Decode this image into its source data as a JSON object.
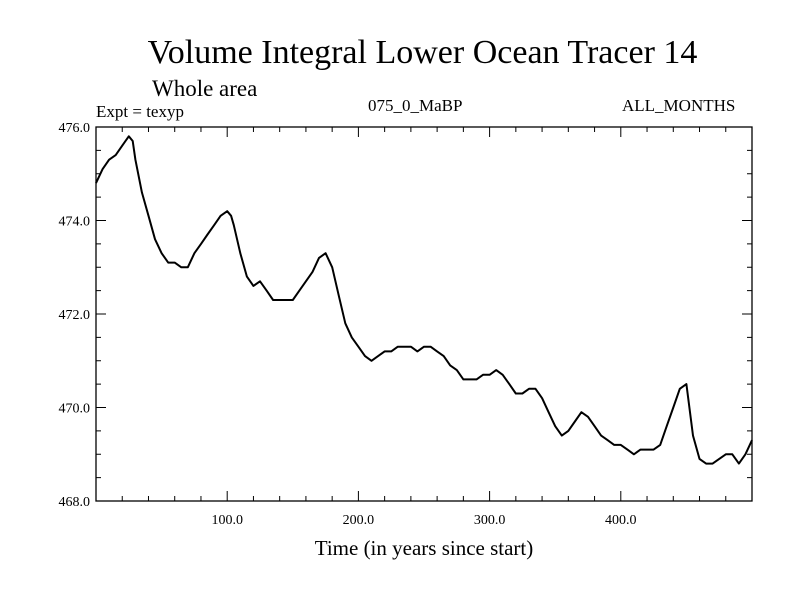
{
  "chart_data": {
    "type": "line",
    "title": "Volume Integral Lower Ocean Tracer 14",
    "subtitle": "Whole area",
    "expt_label": "Expt = texyp",
    "period_label": "075_0_MaBP",
    "months_label": "ALL_MONTHS",
    "xlabel": "Time (in years since start)",
    "ylabel": "",
    "xlim": [
      0,
      500
    ],
    "ylim": [
      468,
      476
    ],
    "x_ticks": [
      100,
      200,
      300,
      400
    ],
    "x_tick_labels": [
      "100.0",
      "200.0",
      "300.0",
      "400.0"
    ],
    "y_ticks": [
      468,
      470,
      472,
      474,
      476
    ],
    "y_tick_labels": [
      "468.0",
      "470.0",
      "472.0",
      "474.0",
      "476.0"
    ],
    "grid": false,
    "line_color": "#000000",
    "series": [
      {
        "x": [
          0,
          5,
          10,
          15,
          20,
          25,
          28,
          30,
          35,
          40,
          45,
          50,
          55,
          60,
          65,
          70,
          75,
          80,
          85,
          90,
          95,
          100,
          103,
          105,
          110,
          115,
          120,
          125,
          130,
          135,
          140,
          145,
          150,
          155,
          160,
          165,
          170,
          175,
          180,
          185,
          190,
          195,
          200,
          205,
          210,
          215,
          220,
          225,
          230,
          235,
          240,
          245,
          250,
          255,
          260,
          265,
          270,
          275,
          280,
          285,
          290,
          295,
          300,
          305,
          310,
          315,
          320,
          325,
          330,
          335,
          340,
          345,
          350,
          355,
          360,
          365,
          370,
          375,
          380,
          385,
          390,
          395,
          400,
          405,
          410,
          415,
          420,
          425,
          430,
          435,
          440,
          445,
          450,
          455,
          460,
          465,
          470,
          475,
          480,
          485,
          490,
          495,
          500
        ],
        "y": [
          474.8,
          475.1,
          475.3,
          475.4,
          475.6,
          475.8,
          475.7,
          475.3,
          474.6,
          474.1,
          473.6,
          473.3,
          473.1,
          473.1,
          473.0,
          473.0,
          473.3,
          473.5,
          473.7,
          473.9,
          474.1,
          474.2,
          474.1,
          473.9,
          473.3,
          472.8,
          472.6,
          472.7,
          472.5,
          472.3,
          472.3,
          472.3,
          472.3,
          472.5,
          472.7,
          472.9,
          473.2,
          473.3,
          473.0,
          472.4,
          471.8,
          471.5,
          471.3,
          471.1,
          471.0,
          471.1,
          471.2,
          471.2,
          471.3,
          471.3,
          471.3,
          471.2,
          471.3,
          471.3,
          471.2,
          471.1,
          470.9,
          470.8,
          470.6,
          470.6,
          470.6,
          470.7,
          470.7,
          470.8,
          470.7,
          470.5,
          470.3,
          470.3,
          470.4,
          470.4,
          470.2,
          469.9,
          469.6,
          469.4,
          469.5,
          469.7,
          469.9,
          469.8,
          469.6,
          469.4,
          469.3,
          469.2,
          469.2,
          469.1,
          469.0,
          469.1,
          469.1,
          469.1,
          469.2,
          469.6,
          470.0,
          470.4,
          470.5,
          469.4,
          468.9,
          468.8,
          468.8,
          468.9,
          469.0,
          469.0,
          468.8,
          469.0,
          469.3
        ]
      }
    ]
  }
}
